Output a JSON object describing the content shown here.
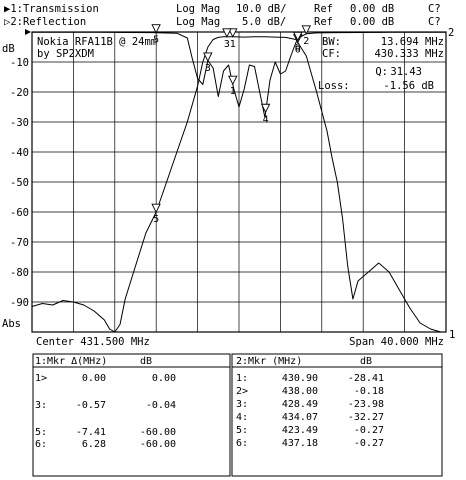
{
  "header": {
    "ch1": {
      "label": "▶1:Transmission",
      "format": "Log Mag",
      "scale": "10.0 dB/",
      "ref_label": "Ref",
      "ref_value": "0.00 dB",
      "flag": "C?"
    },
    "ch2": {
      "label": "▷2:Reflection",
      "format": "Log Mag",
      "scale": "5.0 dB/",
      "ref_label": "Ref",
      "ref_value": "0.00 dB",
      "flag": "C?"
    }
  },
  "info": {
    "device_line1": "Nokia RFA11B @ 24mm",
    "device_line2": "by SP2XDM",
    "bw_label": "BW:",
    "bw_value": "13.694 MHz",
    "cf_label": "CF:",
    "cf_value": "430.333 MHz",
    "q_label": "Q:",
    "q_value": "31.43",
    "loss_label": "Loss:",
    "loss_value": "-1.56 dB"
  },
  "footer": {
    "center": "Center 431.500 MHz",
    "span": "Span 40.000 MHz",
    "abs": "Abs",
    "db": "dB",
    "ref_marker_1": "1",
    "ref_marker_2": "2"
  },
  "chart_data": {
    "type": "line",
    "xlabel": "",
    "ylabel": "dB",
    "x_unit": "MHz",
    "xlim": [
      411.5,
      451.5
    ],
    "ylim": [
      -100,
      0
    ],
    "ytick_labels": [
      "-10",
      "-20",
      "-30",
      "-40",
      "-50",
      "-60",
      "-70",
      "-80",
      "-90"
    ],
    "grid": true,
    "series": [
      {
        "name": "1:Transmission",
        "x": [
          411.5,
          412.5,
          413.5,
          414.5,
          415.5,
          416.5,
          417.5,
          418.5,
          419.0,
          419.5,
          420.0,
          420.5,
          421.5,
          422.5,
          423.5,
          424.5,
          425.5,
          426.5,
          427.5,
          428.0,
          428.5,
          429.0,
          429.5,
          430.0,
          431.0,
          432.0,
          433.0,
          434.0,
          435.0,
          436.0,
          437.0,
          438.0,
          439.0,
          440.0,
          440.5,
          441.0,
          441.5,
          442.0,
          442.5,
          443.0,
          444.0,
          445.0,
          446.0,
          447.0,
          448.0,
          449.0,
          450.0,
          451.0,
          451.5
        ],
        "values": [
          -91.5,
          -90.5,
          -91.0,
          -89.5,
          -90.0,
          -91.0,
          -93.0,
          -96.0,
          -99.0,
          -100.0,
          -97.5,
          -89.0,
          -78.0,
          -67.0,
          -60.0,
          -50.0,
          -40.0,
          -30.0,
          -18.0,
          -10.0,
          -5.0,
          -2.5,
          -1.8,
          -1.6,
          -1.6,
          -1.7,
          -1.6,
          -1.6,
          -1.7,
          -1.8,
          -2.5,
          -8.0,
          -20.0,
          -33.0,
          -42.0,
          -50.0,
          -62.0,
          -78.0,
          -89.0,
          -83.0,
          -80.0,
          -77.0,
          -80.0,
          -86.0,
          -92.0,
          -97.0,
          -99.0,
          -100.0,
          -100.0
        ]
      },
      {
        "name": "2:Reflection",
        "x": [
          411.5,
          418.0,
          423.0,
          425.5,
          426.5,
          427.0,
          427.5,
          428.0,
          428.5,
          429.0,
          429.5,
          430.0,
          430.5,
          431.0,
          431.5,
          432.0,
          432.5,
          433.0,
          433.5,
          434.0,
          434.5,
          435.0,
          435.5,
          436.0,
          436.5,
          437.0,
          437.5,
          438.0,
          439.0,
          441.0,
          446.0,
          451.5
        ],
        "values": [
          -0.1,
          -0.1,
          -0.2,
          -0.4,
          -2.0,
          -9.0,
          -15.5,
          -17.5,
          -9.5,
          -12.0,
          -21.5,
          -13.0,
          -11.0,
          -19.0,
          -25.0,
          -19.0,
          -11.0,
          -11.5,
          -20.0,
          -28.5,
          -16.0,
          -10.0,
          -14.0,
          -13.0,
          -8.0,
          -3.5,
          -1.5,
          -0.6,
          -0.3,
          -0.2,
          -0.1,
          -0.1
        ]
      }
    ]
  },
  "markers_ch1": {
    "title": "1:Mkr Δ(MHz)",
    "unit": "dB",
    "rows": [
      {
        "id": "1>",
        "freq": "0.00",
        "level": "0.00"
      },
      {
        "id": "3:",
        "freq": "-0.57",
        "level": "-0.04"
      },
      {
        "id": "5:",
        "freq": "-7.41",
        "level": "-60.00"
      },
      {
        "id": "6:",
        "freq": "6.28",
        "level": "-60.00"
      }
    ]
  },
  "markers_ch2": {
    "title": "2:Mkr (MHz)",
    "unit": "dB",
    "rows": [
      {
        "id": "1:",
        "freq": "430.90",
        "level": "-28.41"
      },
      {
        "id": "2>",
        "freq": "438.00",
        "level": "-0.18"
      },
      {
        "id": "3:",
        "freq": "428.49",
        "level": "-23.98"
      },
      {
        "id": "4:",
        "freq": "434.07",
        "level": "-32.27"
      },
      {
        "id": "5:",
        "freq": "423.49",
        "level": "-0.27"
      },
      {
        "id": "6:",
        "freq": "437.18",
        "level": "-0.27"
      }
    ]
  },
  "plot_markers": [
    {
      "label": "1",
      "trace": 0,
      "freq": 430.9
    },
    {
      "label": "3",
      "trace": 0,
      "freq": 430.33
    },
    {
      "label": "5",
      "trace": 0,
      "freq": 423.49
    },
    {
      "label": "6",
      "trace": 0,
      "freq": 437.18
    },
    {
      "label": "1",
      "trace": 1,
      "freq": 430.9
    },
    {
      "label": "2",
      "trace": 1,
      "freq": 438.0
    },
    {
      "label": "3",
      "trace": 1,
      "freq": 428.49
    },
    {
      "label": "4",
      "trace": 1,
      "freq": 434.07
    },
    {
      "label": "5",
      "trace": 1,
      "freq": 423.49
    },
    {
      "label": "6",
      "trace": 1,
      "freq": 437.18
    }
  ]
}
